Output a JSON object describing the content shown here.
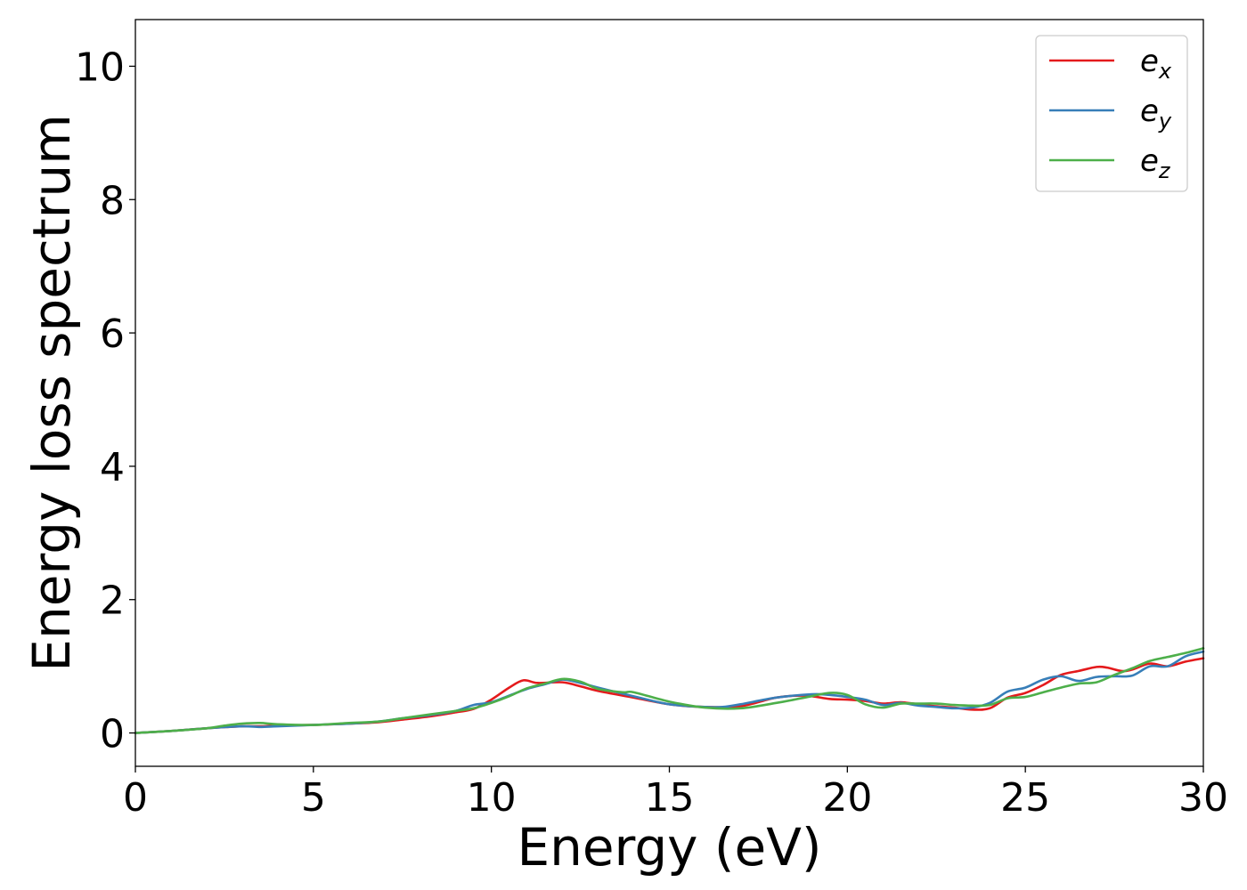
{
  "chart_data": {
    "type": "line",
    "title": "",
    "xlabel": "Energy (eV)",
    "ylabel": "Energy loss spectrum",
    "xlim": [
      0,
      30
    ],
    "ylim": [
      -0.5,
      10.7
    ],
    "xticks": [
      0,
      5,
      10,
      15,
      20,
      25,
      30
    ],
    "yticks": [
      0,
      2,
      4,
      6,
      8,
      10
    ],
    "grid": false,
    "legend_position": "top-right",
    "series": [
      {
        "name": "e_x",
        "label_base": "e",
        "label_sub": "x",
        "color": "#e41a1c",
        "x": [
          0,
          1,
          2,
          3,
          3.5,
          4,
          5,
          6,
          6.8,
          7.5,
          8.3,
          9,
          9.5,
          10,
          10.5,
          10.9,
          11.3,
          12,
          12.5,
          13,
          14,
          15,
          16,
          17,
          18,
          18.8,
          19.5,
          20,
          20.5,
          21,
          21.5,
          22,
          22.5,
          23,
          23.5,
          24,
          24.5,
          25,
          25.5,
          26,
          26.5,
          27,
          27.3,
          27.7,
          28,
          28.5,
          29,
          29.5,
          30
        ],
        "y": [
          0,
          0.03,
          0.07,
          0.1,
          0.1,
          0.11,
          0.12,
          0.14,
          0.16,
          0.2,
          0.25,
          0.31,
          0.36,
          0.5,
          0.68,
          0.79,
          0.75,
          0.76,
          0.7,
          0.63,
          0.53,
          0.43,
          0.39,
          0.4,
          0.53,
          0.56,
          0.51,
          0.5,
          0.48,
          0.44,
          0.46,
          0.43,
          0.4,
          0.38,
          0.35,
          0.37,
          0.53,
          0.6,
          0.72,
          0.87,
          0.93,
          0.99,
          0.98,
          0.93,
          0.95,
          1.04,
          1.0,
          1.07,
          1.12
        ]
      },
      {
        "name": "e_y",
        "label_base": "e",
        "label_sub": "y",
        "color": "#377eb8",
        "x": [
          0,
          1,
          2,
          3,
          3.5,
          4,
          5,
          6,
          6.8,
          7.5,
          8.3,
          9,
          9.5,
          10,
          10.5,
          11,
          11.5,
          12,
          12.5,
          13,
          14,
          15,
          16,
          16.5,
          17,
          18,
          19,
          19.5,
          20,
          20.5,
          21,
          21.5,
          22,
          22.5,
          23,
          23.5,
          24,
          24.5,
          25,
          25.5,
          26,
          26.5,
          27,
          27.5,
          28,
          28.5,
          29,
          29.5,
          30
        ],
        "y": [
          0,
          0.03,
          0.07,
          0.1,
          0.09,
          0.1,
          0.12,
          0.14,
          0.17,
          0.22,
          0.27,
          0.33,
          0.42,
          0.46,
          0.56,
          0.66,
          0.73,
          0.8,
          0.75,
          0.68,
          0.55,
          0.43,
          0.39,
          0.39,
          0.43,
          0.53,
          0.58,
          0.57,
          0.54,
          0.5,
          0.42,
          0.45,
          0.41,
          0.39,
          0.37,
          0.38,
          0.45,
          0.62,
          0.68,
          0.8,
          0.85,
          0.78,
          0.84,
          0.85,
          0.86,
          1.0,
          1.0,
          1.15,
          1.22
        ]
      },
      {
        "name": "e_z",
        "label_base": "e",
        "label_sub": "z",
        "color": "#4daf4a",
        "x": [
          0,
          1,
          2,
          2.5,
          3,
          3.5,
          4,
          5,
          6,
          6.8,
          7.5,
          8.3,
          9,
          9.5,
          10,
          10.5,
          11,
          11.5,
          12,
          12.5,
          13,
          13.7,
          14,
          15,
          16,
          17,
          18,
          18.8,
          19.5,
          20,
          20.5,
          21,
          21.5,
          22,
          22.5,
          23,
          23.5,
          24,
          24.5,
          25,
          25.5,
          26,
          26.5,
          27,
          27.5,
          28,
          28.5,
          29,
          29.5,
          30
        ],
        "y": [
          0,
          0.03,
          0.07,
          0.11,
          0.14,
          0.15,
          0.13,
          0.12,
          0.15,
          0.17,
          0.22,
          0.28,
          0.33,
          0.37,
          0.45,
          0.55,
          0.67,
          0.74,
          0.81,
          0.77,
          0.66,
          0.61,
          0.61,
          0.47,
          0.38,
          0.37,
          0.45,
          0.53,
          0.6,
          0.57,
          0.43,
          0.38,
          0.44,
          0.44,
          0.44,
          0.42,
          0.41,
          0.42,
          0.52,
          0.54,
          0.61,
          0.68,
          0.74,
          0.76,
          0.87,
          0.97,
          1.08,
          1.14,
          1.2,
          1.27
        ]
      }
    ]
  }
}
